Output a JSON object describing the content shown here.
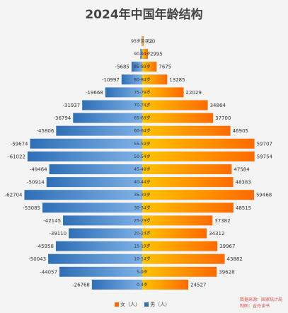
{
  "title": "2024年中国年龄结构",
  "colors": {
    "male_dark": "#2f6fb6",
    "male_light": "#7fb1e6",
    "female_dark": "#ff6a00",
    "female_light": "#ffc400"
  },
  "legend": {
    "female_label": "女（人）",
    "male_label": "男（人）"
  },
  "source": {
    "line1": "数据来源：国家统计局",
    "line2": "制图：吉舟读书"
  },
  "chart_data": {
    "type": "bar",
    "orientation": "horizontal",
    "title": "2024年中国年龄结构",
    "categories": [
      "95岁及以上",
      "90-94岁",
      "85-89岁",
      "80-84岁",
      "75-79岁",
      "70-74岁",
      "65-69岁",
      "60-64岁",
      "55-59岁",
      "50-54岁",
      "45-49岁",
      "40-44岁",
      "35-39岁",
      "30-34岁",
      "25-29岁",
      "20-24岁",
      "15-19岁",
      "10-14岁",
      "5-9岁",
      "0-4岁"
    ],
    "series": [
      {
        "name": "男（人）",
        "values": [
          -210,
          -1010,
          -5685,
          -10997,
          -19668,
          -31937,
          -36794,
          -45806,
          -59674,
          -61022,
          -49464,
          -50914,
          -62704,
          -53085,
          -42145,
          -39110,
          -45958,
          -50043,
          -44057,
          -26768
        ]
      },
      {
        "name": "女（人）",
        "values": [
          720,
          2995,
          7675,
          13285,
          22029,
          34864,
          37700,
          46905,
          59707,
          59754,
          47584,
          48383,
          59468,
          48515,
          37382,
          34312,
          39967,
          43882,
          39628,
          24527
        ]
      }
    ],
    "labels_male": [
      "",
      "",
      "-5685",
      "-10997",
      "-19668",
      "-31937",
      "-36794",
      "-45806",
      "-59674",
      "-61022",
      "-49464",
      "-50914",
      "-62704",
      "-53085",
      "-42145",
      "-39110",
      "-45958",
      "-50043",
      "-44057",
      "-26768"
    ],
    "labels_female": [
      "720",
      "2995",
      "7675",
      "13285",
      "22029",
      "34864",
      "37700",
      "46905",
      "59707",
      "59754",
      "47584",
      "48383",
      "59468",
      "48515",
      "37382",
      "34312",
      "39967",
      "43882",
      "39628",
      "24527"
    ],
    "xlim": [
      -64000,
      64000
    ],
    "legend_position": "bottom"
  }
}
